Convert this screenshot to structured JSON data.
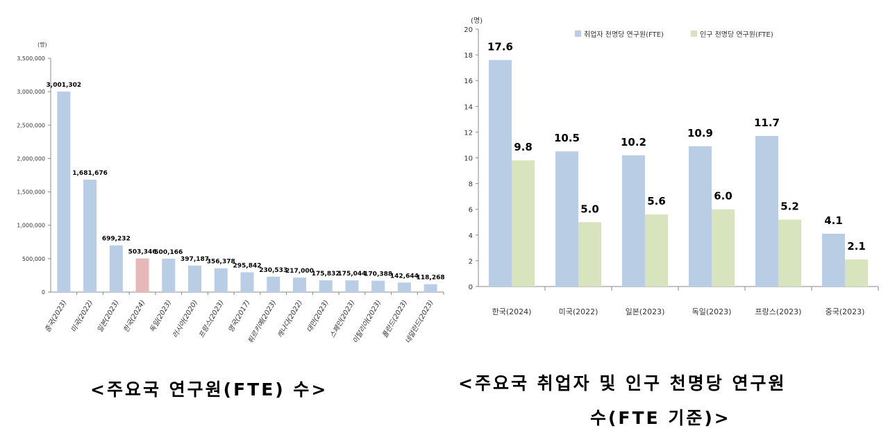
{
  "chart_data": [
    {
      "type": "bar",
      "unit_label": "(명)",
      "categories": [
        "중국(2023)",
        "미국(2022)",
        "일본(2023)",
        "한국(2024)",
        "독일(2023)",
        "러시아(2020)",
        "프랑스(2023)",
        "영국(2017)",
        "튀르키예(2023)",
        "캐나다(2022)",
        "대만(2023)",
        "스페인(2023)",
        "이탈리아(2023)",
        "폴란드(2023)",
        "네덜란드(2023)"
      ],
      "values": [
        3001302,
        1681676,
        699232,
        503346,
        500166,
        397187,
        356378,
        295842,
        230533,
        217000,
        175832,
        175044,
        170388,
        142644,
        118268
      ],
      "data_labels": [
        "3,001,302",
        "1,681,676",
        "699,232",
        "503,346",
        "500,166",
        "397,187",
        "356,378",
        "295,842",
        "230,533",
        "217,000",
        "175,832",
        "175,044",
        "170,388",
        "142,644",
        "118,268"
      ],
      "ylim": [
        0,
        3500000
      ],
      "yticks": [
        "0",
        "500,000",
        "1,000,000",
        "1,500,000",
        "2,000,000",
        "2,500,000",
        "3,000,000",
        "3,500,000"
      ],
      "highlight_index": 3,
      "colors": {
        "bar": "#b9cde5",
        "highlight": "#e6b9b8"
      },
      "grid": false
    },
    {
      "type": "bar",
      "unit_label": "(명)",
      "categories": [
        "한국(2024)",
        "미국(2022)",
        "일본(2023)",
        "독일(2023)",
        "프랑스(2023)",
        "중국(2023)"
      ],
      "series": [
        {
          "name": "취업자 천명당 연구원(FTE)",
          "values": [
            17.6,
            10.5,
            10.2,
            10.9,
            11.7,
            4.1
          ],
          "color": "#b9cde5"
        },
        {
          "name": "인구 천명당 연구원(FTE)",
          "values": [
            9.8,
            5.0,
            5.6,
            6.0,
            5.2,
            2.1
          ],
          "color": "#d7e4bd"
        }
      ],
      "ylim": [
        0,
        20
      ],
      "yticks": [
        "0",
        "2",
        "4",
        "6",
        "8",
        "10",
        "12",
        "14",
        "16",
        "18",
        "20"
      ],
      "legend_position": "top",
      "grid": false
    }
  ],
  "captions": {
    "left": "<주요국 연구원(FTE) 수>",
    "right_line1": "<주요국 취업자 및 인구 천명당 연구원",
    "right_line2": "수(FTE 기준)>"
  }
}
